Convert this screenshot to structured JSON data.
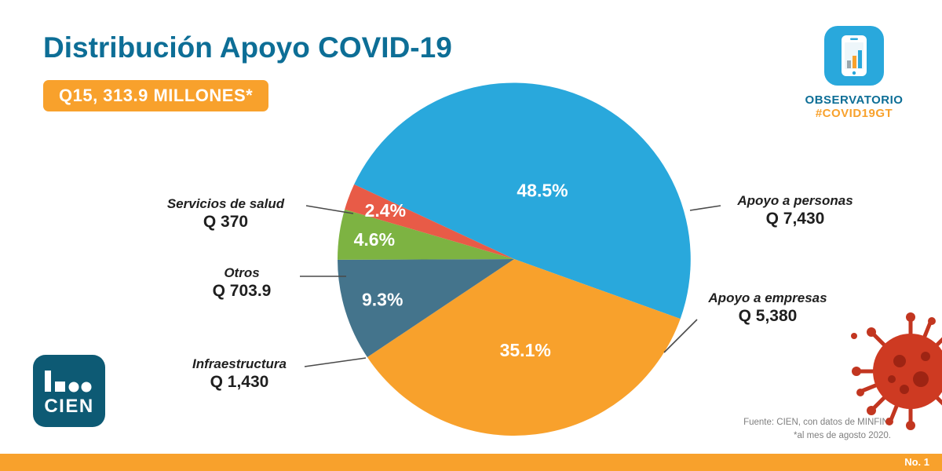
{
  "title": "Distribución Apoyo COVID-19",
  "total_badge": "Q15, 313.9 MILLONES*",
  "observatory": {
    "line1": "OBSERVATORIO",
    "line2": "#COVID19GT"
  },
  "logo": {
    "text": "CIEN"
  },
  "source": {
    "line1": "Fuente: CIEN, con datos de MINFIN.",
    "line2": "*al mes de agosto 2020."
  },
  "footer": {
    "page": "No. 1"
  },
  "colors": {
    "title_teal": "#0d6e96",
    "accent_orange": "#f8a12c",
    "slice_blue": "#29a8dc",
    "slice_orange": "#f8a12c",
    "slice_steel": "#44748c",
    "slice_green": "#7db342",
    "slice_red": "#e85b47",
    "logo_teal": "#0d5a74"
  },
  "chart_data": {
    "type": "pie",
    "title": "Distribución Apoyo COVID-19",
    "total_label": "Q15, 313.9 MILLONES*",
    "start_angle_deg": -65,
    "legend_position": "callout-labels",
    "slices": [
      {
        "label": "Apoyo a personas",
        "amount": "Q 7,430",
        "value": 48.5,
        "pct_label": "48.5%",
        "color": "#29a8dc",
        "side": "right"
      },
      {
        "label": "Apoyo a empresas",
        "amount": "Q 5,380",
        "value": 35.1,
        "pct_label": "35.1%",
        "color": "#f8a12c",
        "side": "right"
      },
      {
        "label": "Infraestructura",
        "amount": "Q 1,430",
        "value": 9.3,
        "pct_label": "9.3%",
        "color": "#44748c",
        "side": "left"
      },
      {
        "label": "Otros",
        "amount": "Q 703.9",
        "value": 4.6,
        "pct_label": "4.6%",
        "color": "#7db342",
        "side": "left"
      },
      {
        "label": "Servicios de salud",
        "amount": "Q 370",
        "value": 2.4,
        "pct_label": "2.4%",
        "color": "#e85b47",
        "side": "left"
      }
    ]
  }
}
